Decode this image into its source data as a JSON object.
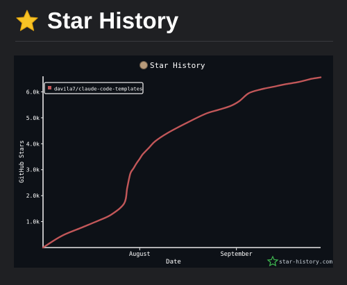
{
  "page": {
    "title": "Star History"
  },
  "chart_data": {
    "type": "line",
    "title": "Star History",
    "xlabel": "Date",
    "ylabel": "GitHub Stars",
    "ylim": [
      0,
      6600
    ],
    "yticks": [
      "1.0k",
      "2.0k",
      "3.0k",
      "4.0k",
      "5.0k",
      "6.0k"
    ],
    "ytick_values": [
      1000,
      2000,
      3000,
      4000,
      5000,
      6000
    ],
    "xticks": [
      "August",
      "September"
    ],
    "xtick_values": [
      31,
      62
    ],
    "xlim": [
      0,
      89
    ],
    "legend": "top-left",
    "watermark": "star-history.com",
    "series": [
      {
        "name": "davila7/claude-code-templates",
        "color": "#c25759",
        "x": [
          0,
          6,
          12,
          18,
          22,
          26,
          27,
          28,
          29,
          30,
          31,
          32,
          34,
          36,
          40,
          46,
          52,
          56,
          60,
          63,
          66,
          70,
          74,
          78,
          82,
          86,
          89
        ],
        "y": [
          0,
          450,
          750,
          1050,
          1280,
          1700,
          2300,
          2850,
          3050,
          3250,
          3420,
          3600,
          3850,
          4100,
          4420,
          4800,
          5150,
          5300,
          5450,
          5650,
          5950,
          6100,
          6200,
          6300,
          6380,
          6500,
          6560
        ]
      }
    ]
  }
}
